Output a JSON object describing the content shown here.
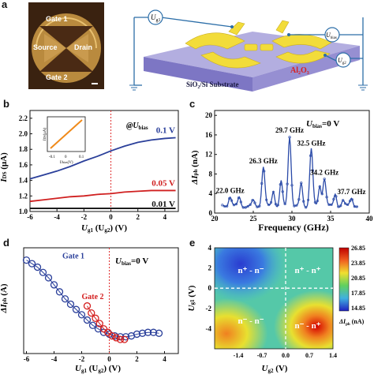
{
  "panels": {
    "a": {
      "label": "a",
      "photo": {
        "gate1": "Gate 1",
        "gate2": "Gate 2",
        "source": "Source",
        "drain": "Drain"
      },
      "schematic": {
        "ug1": "U",
        "ug1_sub": "g1",
        "ug2": "U",
        "ug2_sub": "g2",
        "ubias": "U",
        "ubias_sub": "bias",
        "oxide": "Al",
        "oxide_sub": "2",
        "oxide_o": "O",
        "oxide_sub2": "3",
        "substrate": "SiO₂/Si Substrate"
      },
      "colors": {
        "gold": "#f2dc3a",
        "substrate": "#a8a2d8",
        "wire": "#2c6ea8"
      }
    },
    "b": {
      "label": "b",
      "annotation": "@U",
      "annotation_sub": "bias",
      "ylabel": "I",
      "ylabel_sub": "DS",
      "ylabel_unit": " (μA)",
      "xlabel_main": "U",
      "xlabel_sub": "g1",
      "xlabel_mid": " (U",
      "xlabel_sub2": "g2",
      "xlabel_end": ") (V)",
      "inset": {
        "ylabel": "I",
        "ylabel_sub": "DS",
        "ylabel_unit": "(μA)",
        "xlabel": "U",
        "xlabel_sub": "bias",
        "xlabel_unit": "(V)",
        "xticks": [
          "-0.1",
          "0",
          "0.1"
        ],
        "yticks": [
          "-0.1",
          "0",
          "0.1"
        ]
      },
      "chart_data": {
        "type": "line",
        "xlim": [
          -6,
          5
        ],
        "ylim": [
          1.0,
          2.3
        ],
        "xticks": [
          -6,
          -4,
          -2,
          0,
          2,
          4
        ],
        "yticks": [
          1.0,
          1.2,
          1.4,
          1.6,
          1.8,
          2.0,
          2.2
        ],
        "series": [
          {
            "name": "0.1 V",
            "color": "#2a3f9a",
            "x": [
              -6,
              -5,
              -4,
              -3,
              -2,
              -1,
              0,
              1,
              2,
              3,
              4,
              4.8
            ],
            "y": [
              1.42,
              1.47,
              1.52,
              1.58,
              1.65,
              1.71,
              1.78,
              1.84,
              1.89,
              1.92,
              1.94,
              1.95
            ]
          },
          {
            "name": "0.05 V",
            "color": "#d02020",
            "x": [
              -6,
              -5,
              -4,
              -3,
              -2,
              -1,
              0,
              1,
              2,
              3,
              4,
              4.8
            ],
            "y": [
              1.13,
              1.15,
              1.17,
              1.19,
              1.2,
              1.22,
              1.23,
              1.25,
              1.26,
              1.27,
              1.27,
              1.27
            ]
          },
          {
            "name": "0.01 V",
            "color": "#111111",
            "x": [
              -6,
              -5,
              -4,
              -3,
              -2,
              -1,
              0,
              1,
              2,
              3,
              4,
              4.8
            ],
            "y": [
              1.04,
              1.04,
              1.04,
              1.04,
              1.04,
              1.04,
              1.04,
              1.04,
              1.04,
              1.04,
              1.04,
              1.04
            ]
          }
        ]
      }
    },
    "c": {
      "label": "c",
      "annotation": "U",
      "annotation_sub": "bias",
      "annotation_val": "=0 V",
      "ylabel": "ΔI",
      "ylabel_sub": "ph",
      "ylabel_unit": " (nA)",
      "xlabel": "Frequency (GHz)",
      "chart_data": {
        "type": "line",
        "xlim": [
          20,
          40
        ],
        "ylim": [
          0,
          21
        ],
        "xticks": [
          20,
          25,
          30,
          35,
          40
        ],
        "yticks": [
          0,
          4,
          8,
          12,
          16,
          20
        ],
        "peaks": [
          {
            "label": "22.0 GHz",
            "x": 22.0,
            "y": 3.5
          },
          {
            "label": "26.3 GHz",
            "x": 26.3,
            "y": 9.5
          },
          {
            "label": "29.7 GHz",
            "x": 29.7,
            "y": 15.8
          },
          {
            "label": "32.5 GHz",
            "x": 32.5,
            "y": 13.2
          },
          {
            "label": "34.2 GHz",
            "x": 34.2,
            "y": 7.2
          },
          {
            "label": "37.7 GHz",
            "x": 37.7,
            "y": 3.2
          }
        ],
        "series_color": "#2a4aa8"
      }
    },
    "d": {
      "label": "d",
      "annotation": "U",
      "annotation_sub": "bias",
      "annotation_val": "=0 V",
      "ylabel": "ΔI",
      "ylabel_sub": "ph",
      "ylabel_unit": " (A)",
      "xlabel_main": "U",
      "xlabel_sub": "g1",
      "xlabel_mid": " (U",
      "xlabel_sub2": "g2",
      "xlabel_end": ") (V)",
      "chart_data": {
        "type": "scatter",
        "xlim": [
          -6.2,
          5
        ],
        "xticks": [
          -6,
          -4,
          -2,
          0,
          2,
          4
        ],
        "series": [
          {
            "name": "Gate 1",
            "color": "#2a3f9a",
            "x": [
              -6,
              -5.6,
              -5.2,
              -4.8,
              -4.4,
              -4,
              -3.6,
              -3.2,
              -2.8,
              -2.4,
              -2,
              -1.6,
              -1.2,
              -0.8,
              -0.4,
              0,
              0.4,
              0.8,
              1.2,
              1.6,
              2,
              2.4,
              2.8,
              3.2,
              3.6
            ],
            "y": [
              8.3,
              8.1,
              7.9,
              7.6,
              7.3,
              6.9,
              6.5,
              6.1,
              5.8,
              5.5,
              5.2,
              4.9,
              4.6,
              4.4,
              4.2,
              4.1,
              4.0,
              3.95,
              3.95,
              4.0,
              4.1,
              4.15,
              4.2,
              4.2,
              4.15
            ]
          },
          {
            "name": "Gate 2",
            "color": "#d42020",
            "x": [
              -1.6,
              -1.3,
              -1,
              -0.7,
              -0.4,
              -0.1,
              0.2,
              0.5,
              0.8,
              1.1
            ],
            "y": [
              5.7,
              5.3,
              5.0,
              4.7,
              4.4,
              4.2,
              4.0,
              3.9,
              3.8,
              3.8
            ]
          }
        ]
      }
    },
    "e": {
      "label": "e",
      "ylabel": "U",
      "ylabel_sub": "g1",
      "ylabel_unit": " (V)",
      "xlabel": "U",
      "xlabel_sub": "g2",
      "xlabel_unit": " (V)",
      "colorbar_label": "ΔI",
      "colorbar_sub": "ph",
      "colorbar_unit": " (nA)",
      "quadrants": {
        "tl": "n⁺ - n⁻",
        "tr": "n⁺ - n⁺",
        "bl": "n⁻ - n⁻",
        "br": "n⁻ - n⁺"
      },
      "chart_data": {
        "type": "heatmap",
        "xlim": [
          -2.1,
          1.4
        ],
        "ylim": [
          -6,
          4
        ],
        "xticks": [
          "-1.4",
          "-0.7",
          "0.0",
          "0.7",
          "1.4"
        ],
        "yticks": [
          "4",
          "2",
          "0",
          "-2",
          "-4"
        ],
        "colorbar_ticks": [
          "26.85",
          "23.85",
          "20.85",
          "17.85",
          "14.85"
        ],
        "zlim": [
          14.85,
          26.85
        ]
      }
    }
  }
}
